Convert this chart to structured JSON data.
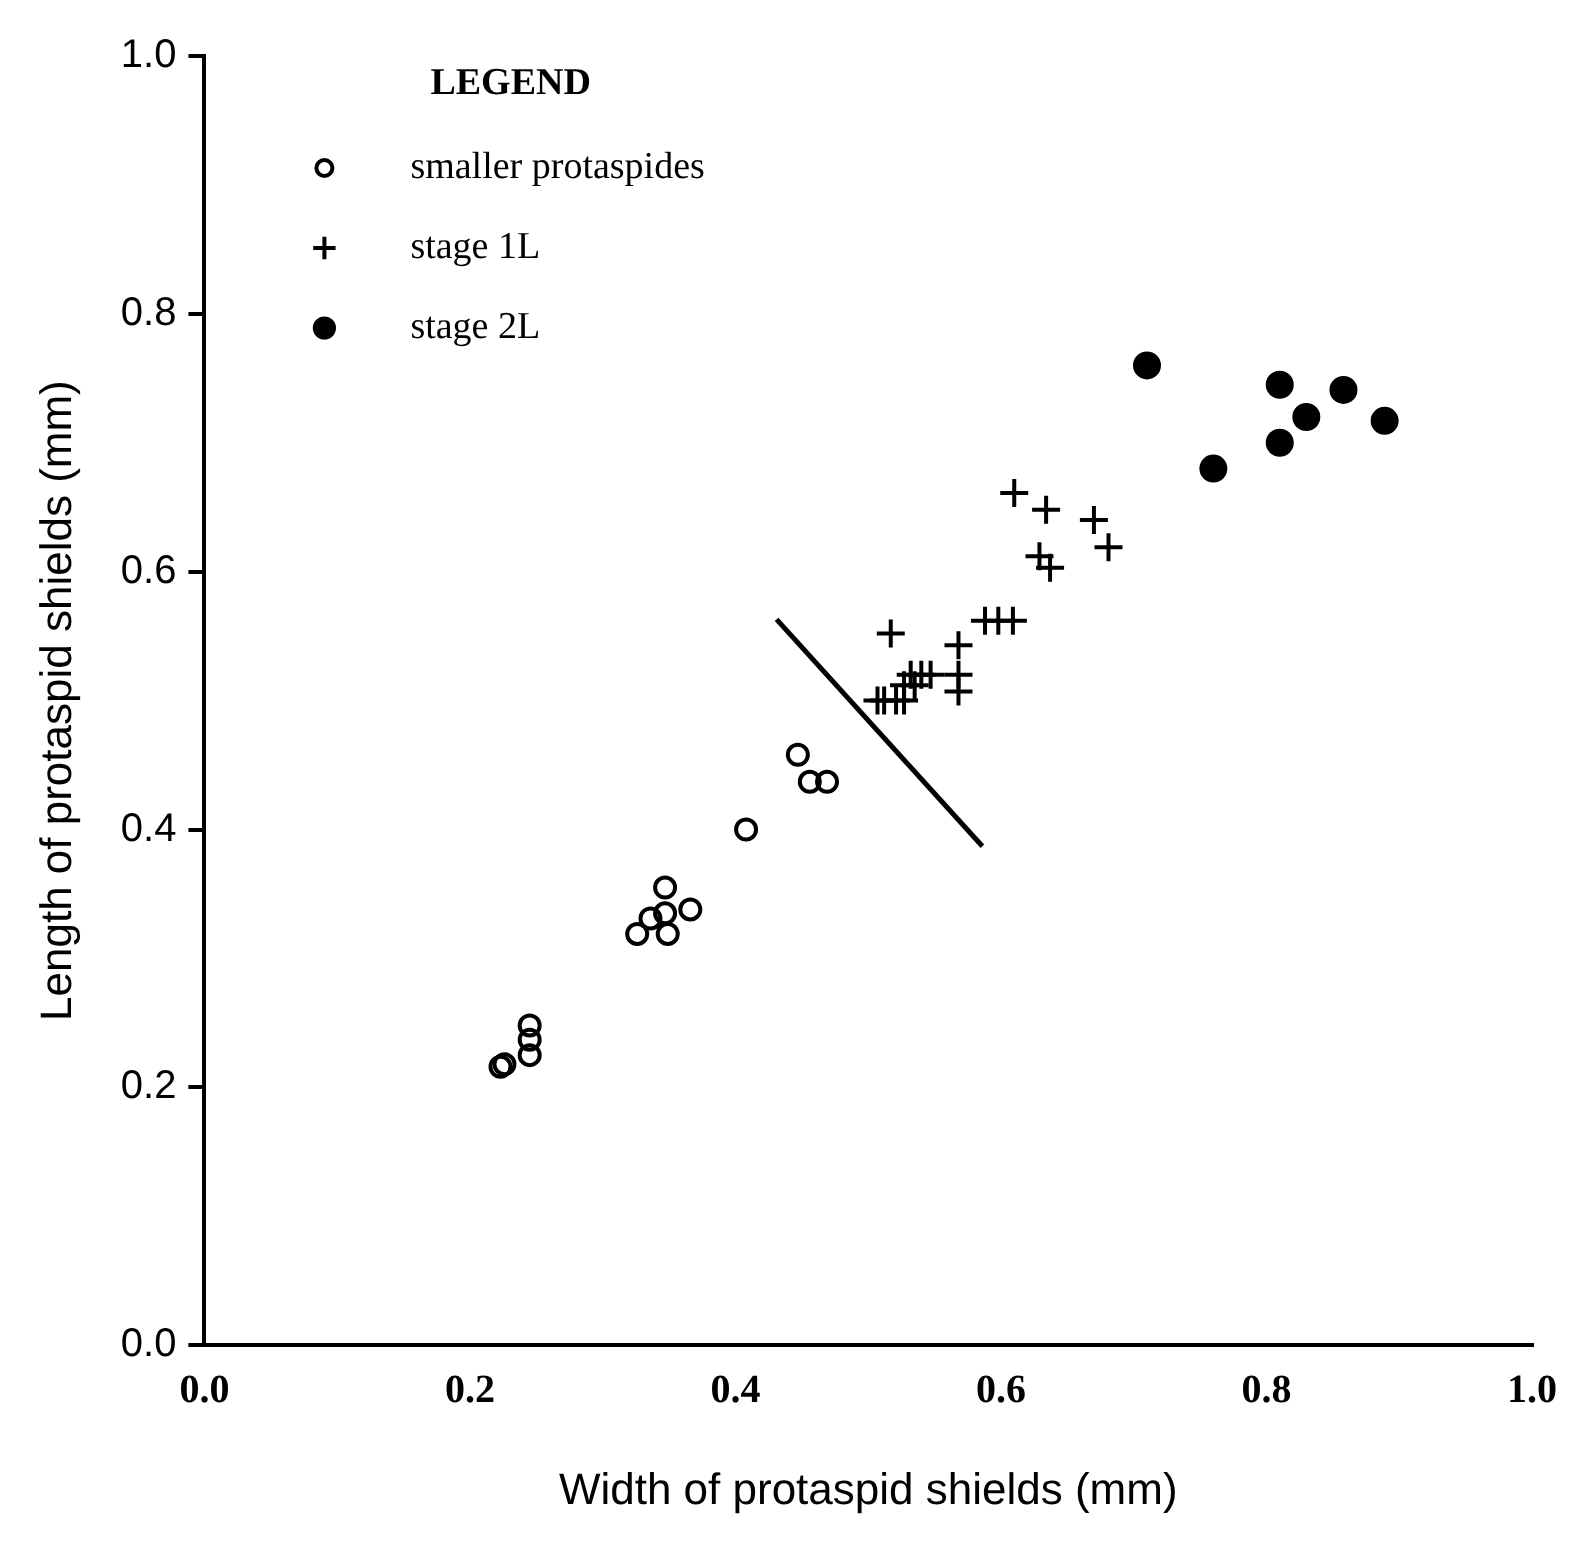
{
  "chart_data": {
    "type": "scatter",
    "xlabel": "Width of protaspid shields (mm)",
    "ylabel": "Length of protaspid shields (mm)",
    "legend_title": "LEGEND",
    "legend": "top left",
    "grid": false,
    "xlim": [
      0,
      1
    ],
    "ylim": [
      0,
      1
    ],
    "xticks": [
      {
        "value": 0,
        "label": "0.0"
      },
      0.2,
      0.4,
      0.6,
      0.8,
      {
        "value": 1,
        "label": "1.0"
      }
    ],
    "yticks": [
      {
        "value": 0,
        "label": "0.0"
      },
      0.2,
      0.4,
      0.6,
      0.8,
      {
        "value": 1,
        "label": "1.0"
      }
    ],
    "series": [
      {
        "name": "smaller protaspides",
        "color": "#000000",
        "marker": "circle",
        "x": [
          0.223,
          0.226,
          0.245,
          0.245,
          0.245,
          0.347,
          0.366,
          0.336,
          0.326,
          0.349,
          0.347,
          0.408,
          0.447,
          0.456,
          0.469
        ],
        "values": [
          0.216,
          0.218,
          0.248,
          0.237,
          0.225,
          0.355,
          0.338,
          0.331,
          0.319,
          0.319,
          0.335,
          0.4,
          0.458,
          0.437,
          0.437
        ]
      },
      {
        "name": "stage 1L",
        "color": "#000000",
        "marker": "cross",
        "x": [
          0.61,
          0.634,
          0.67,
          0.681,
          0.629,
          0.637,
          0.517,
          0.588,
          0.598,
          0.609,
          0.568,
          0.568,
          0.568,
          0.532,
          0.54,
          0.547,
          0.527,
          0.535,
          0.507,
          0.512,
          0.521,
          0.527
        ],
        "values": [
          0.661,
          0.648,
          0.64,
          0.619,
          0.612,
          0.603,
          0.552,
          0.562,
          0.562,
          0.562,
          0.543,
          0.52,
          0.507,
          0.52,
          0.52,
          0.52,
          0.512,
          0.512,
          0.5,
          0.5,
          0.5,
          0.5
        ]
      },
      {
        "name": "stage 2L",
        "color": "#000000",
        "marker": "filled circle",
        "x": [
          0.71,
          0.76,
          0.81,
          0.81,
          0.83,
          0.858,
          0.889
        ],
        "values": [
          0.76,
          0.68,
          0.7,
          0.745,
          0.72,
          0.741,
          0.717
        ]
      },
      {
        "type": "line",
        "color": "#000000",
        "marker": "none",
        "x": [
          0.431,
          0.586
        ],
        "values": [
          0.563,
          0.387
        ]
      }
    ]
  }
}
